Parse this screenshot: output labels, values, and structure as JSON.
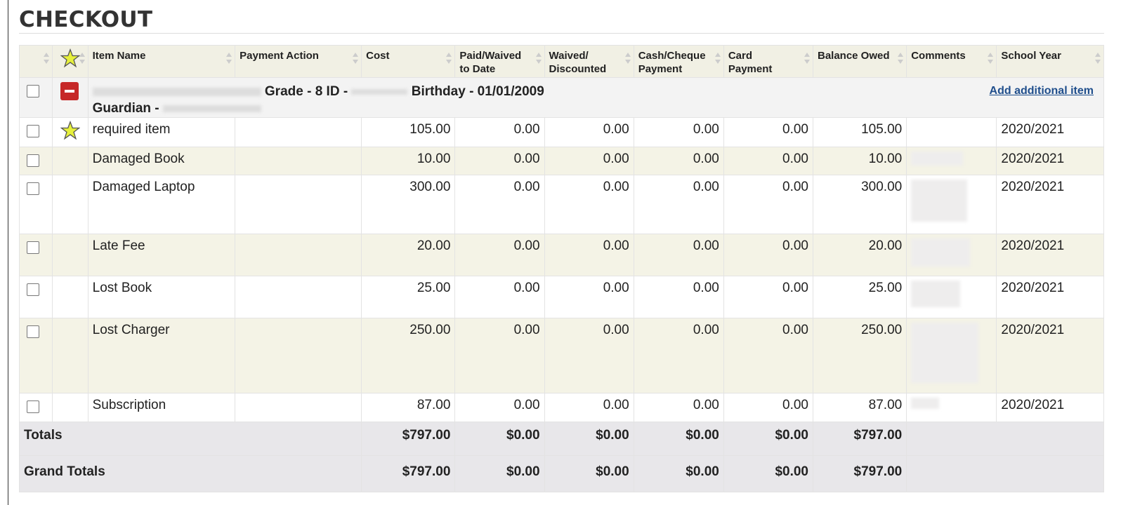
{
  "page": {
    "title": "CHECKOUT"
  },
  "columns": [
    "",
    "",
    "Item Name",
    "Payment Action",
    "Cost",
    "Paid/Waived to Date",
    "Waived/ Discounted",
    "Cash/Cheque Payment",
    "Card Payment",
    "Balance Owed",
    "Comments",
    "School Year"
  ],
  "student": {
    "grade_text": "Grade - 8 ID -",
    "birthday_text": "Birthday - 01/01/2009",
    "guardian_text": "Guardian -",
    "add_item_label": "Add additional item"
  },
  "rows": [
    {
      "item": "required item",
      "cost": "105.00",
      "paid": "0.00",
      "waived": "0.00",
      "cash": "0.00",
      "card": "0.00",
      "balance": "105.00",
      "year": "2020/2021",
      "starred": true
    },
    {
      "item": "Damaged Book",
      "cost": "10.00",
      "paid": "0.00",
      "waived": "0.00",
      "cash": "0.00",
      "card": "0.00",
      "balance": "10.00",
      "year": "2020/2021",
      "starred": false
    },
    {
      "item": "Damaged Laptop",
      "cost": "300.00",
      "paid": "0.00",
      "waived": "0.00",
      "cash": "0.00",
      "card": "0.00",
      "balance": "300.00",
      "year": "2020/2021",
      "starred": false
    },
    {
      "item": "Late Fee",
      "cost": "20.00",
      "paid": "0.00",
      "waived": "0.00",
      "cash": "0.00",
      "card": "0.00",
      "balance": "20.00",
      "year": "2020/2021",
      "starred": false
    },
    {
      "item": "Lost Book",
      "cost": "25.00",
      "paid": "0.00",
      "waived": "0.00",
      "cash": "0.00",
      "card": "0.00",
      "balance": "25.00",
      "year": "2020/2021",
      "starred": false
    },
    {
      "item": "Lost Charger",
      "cost": "250.00",
      "paid": "0.00",
      "waived": "0.00",
      "cash": "0.00",
      "card": "0.00",
      "balance": "250.00",
      "year": "2020/2021",
      "starred": false
    },
    {
      "item": "Subscription",
      "cost": "87.00",
      "paid": "0.00",
      "waived": "0.00",
      "cash": "0.00",
      "card": "0.00",
      "balance": "87.00",
      "year": "2020/2021",
      "starred": false
    }
  ],
  "totals": {
    "label": "Totals",
    "cost": "$797.00",
    "paid": "$0.00",
    "waived": "$0.00",
    "cash": "$0.00",
    "card": "$0.00",
    "balance": "$797.00"
  },
  "grand_totals": {
    "label": "Grand Totals",
    "cost": "$797.00",
    "paid": "$0.00",
    "waived": "$0.00",
    "cash": "$0.00",
    "card": "$0.00",
    "balance": "$797.00"
  },
  "colors": {
    "header_bg": "#f1f0e4",
    "alt_row_bg": "#f4f3e6",
    "footer_bg": "#e8e7ea",
    "star_fill": "#e6f03c",
    "remove_red": "#c62828",
    "link_blue": "#1f4e8c"
  },
  "icons": {
    "remove": "minus-square-icon",
    "required": "star-icon"
  }
}
